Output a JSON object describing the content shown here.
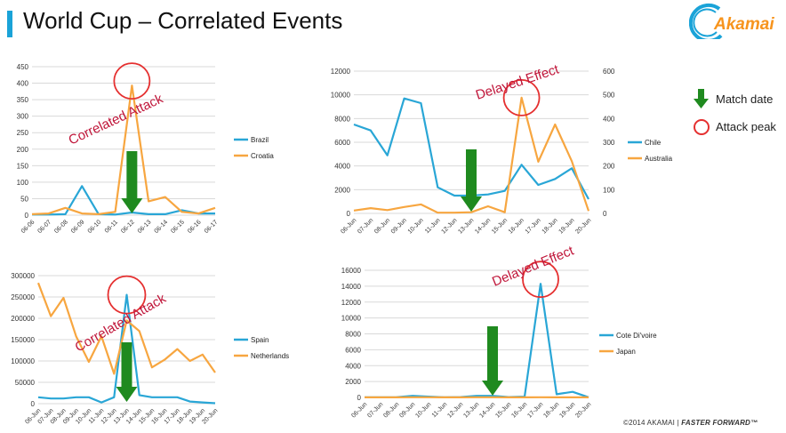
{
  "page": {
    "title": "World Cup – Correlated Events",
    "logo_text": "Akamai",
    "copyright_prefix": "©2014 AKAMAI",
    "copyright_sep": "|",
    "copyright_tag": "FASTER FORWARD™"
  },
  "key": {
    "match_date": "Match date",
    "attack_peak": "Attack peak"
  },
  "colors": {
    "blue": "#29a6d6",
    "orange": "#f7a640",
    "grid": "#d9d9d9",
    "arrow": "#1f8a1f",
    "circle": "#e53030",
    "annotation": "#c0163a"
  },
  "chart_data": [
    {
      "type": "line",
      "categories": [
        "06-06",
        "06-07",
        "06-08",
        "06-09",
        "06-10",
        "06-11",
        "06-12",
        "06-13",
        "06-14",
        "06-15",
        "06-16",
        "06-17"
      ],
      "series": [
        {
          "name": "Brazil",
          "axis": "left",
          "color": "#29a6d6",
          "values": [
            2,
            2,
            3,
            88,
            3,
            2,
            8,
            3,
            3,
            15,
            5,
            5
          ]
        },
        {
          "name": "Croatia",
          "axis": "left",
          "color": "#f7a640",
          "values": [
            3,
            5,
            22,
            5,
            3,
            10,
            393,
            42,
            55,
            10,
            5,
            22
          ]
        }
      ],
      "yticks_left": [
        "0",
        "50",
        "100",
        "150",
        "200",
        "250",
        "300",
        "350",
        "400",
        "450"
      ],
      "ylim_left": [
        0,
        450
      ],
      "annotation": "Correlated Attack",
      "arrow_index": 6,
      "peak_index": 6,
      "legend_position": "right"
    },
    {
      "type": "line",
      "categories": [
        "06-Jun",
        "07-Jun",
        "08-Jun",
        "09-Jun",
        "10-Jun",
        "11-Jun",
        "12-Jun",
        "13-Jun",
        "14-Jun",
        "15-Jun",
        "16-Jun",
        "17-Jun",
        "18-Jun",
        "19-Jun",
        "20-Jun"
      ],
      "series": [
        {
          "name": "Chile",
          "axis": "left",
          "color": "#29a6d6",
          "values": [
            7500,
            7000,
            4900,
            9700,
            9300,
            2200,
            1500,
            1500,
            1600,
            1900,
            4100,
            2400,
            2900,
            3800,
            1200
          ]
        },
        {
          "name": "Australia",
          "axis": "right",
          "color": "#f7a640",
          "values": [
            12,
            22,
            14,
            27,
            38,
            3,
            3,
            5,
            30,
            5,
            488,
            218,
            375,
            220,
            10
          ]
        }
      ],
      "yticks_left": [
        "0",
        "2000",
        "4000",
        "6000",
        "8000",
        "10000",
        "12000"
      ],
      "ylim_left": [
        0,
        12000
      ],
      "yticks_right": [
        "0",
        "100",
        "200",
        "300",
        "400",
        "500",
        "600"
      ],
      "ylim_right": [
        0,
        600
      ],
      "annotation": "Delayed Effect",
      "arrow_index": 7,
      "peak_index": 10,
      "legend_position": "right"
    },
    {
      "type": "line",
      "categories": [
        "06-Jun",
        "07-Jun",
        "08-Jun",
        "09-Jun",
        "10-Jun",
        "11-Jun",
        "12-Jun",
        "13-Jun",
        "14-Jun",
        "15-Jun",
        "16-Jun",
        "17-Jun",
        "18-Jun",
        "19-Jun",
        "20-Jun"
      ],
      "series": [
        {
          "name": "Spain",
          "axis": "left",
          "color": "#29a6d6",
          "values": [
            15000,
            12000,
            12000,
            15000,
            15000,
            3000,
            15000,
            255000,
            20000,
            15000,
            15000,
            15000,
            5000,
            3000,
            1000
          ]
        },
        {
          "name": "Netherlands",
          "axis": "left",
          "color": "#f7a640",
          "values": [
            283000,
            205000,
            248000,
            158000,
            98000,
            158000,
            70000,
            195000,
            170000,
            85000,
            103000,
            128000,
            100000,
            115000,
            73000
          ]
        }
      ],
      "yticks_left": [
        "0",
        "50000",
        "100000",
        "150000",
        "200000",
        "250000",
        "300000"
      ],
      "ylim_left": [
        0,
        300000
      ],
      "annotation": "Correlated Attack",
      "arrow_index": 7,
      "peak_index": 7,
      "legend_position": "right"
    },
    {
      "type": "line",
      "categories": [
        "06-Jun",
        "07-Jun",
        "08-Jun",
        "09-Jun",
        "10-Jun",
        "11-Jun",
        "12-Jun",
        "13-Jun",
        "14-Jun",
        "15-Jun",
        "16-Jun",
        "17-Jun",
        "18-Jun",
        "19-Jun",
        "20-Jun"
      ],
      "series": [
        {
          "name": "Cote Di'voire",
          "axis": "left",
          "color": "#29a6d6",
          "values": [
            20,
            20,
            30,
            200,
            100,
            20,
            50,
            200,
            200,
            50,
            100,
            14300,
            400,
            700,
            20
          ]
        },
        {
          "name": "Japan",
          "axis": "left",
          "color": "#f7a640",
          "values": [
            10,
            10,
            10,
            20,
            20,
            10,
            10,
            20,
            20,
            10,
            10,
            20,
            10,
            10,
            10
          ]
        }
      ],
      "yticks_left": [
        "0",
        "2000",
        "4000",
        "6000",
        "8000",
        "10000",
        "12000",
        "14000",
        "16000"
      ],
      "ylim_left": [
        0,
        16000
      ],
      "annotation": "Delayed Effect",
      "arrow_index": 8,
      "peak_index": 11,
      "legend_position": "right"
    }
  ]
}
